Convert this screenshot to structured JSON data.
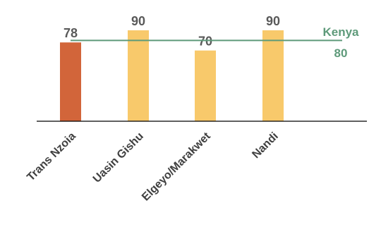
{
  "chart_data": {
    "type": "bar",
    "title": "",
    "xlabel": "",
    "ylabel": "",
    "categories": [
      "Trans Nzoia",
      "Uasin Gishu",
      "Elgeyo/Marakwet",
      "Nandi"
    ],
    "values": [
      78,
      90,
      70,
      90
    ],
    "value_labels": [
      "78",
      "90",
      "70",
      "90"
    ],
    "bar_colors": [
      "#d2653a",
      "#f8c96b",
      "#f8c96b",
      "#f8c96b"
    ],
    "ylim": [
      0,
      90
    ],
    "grid": false,
    "reference_line": {
      "name": "Kenya",
      "value": 80,
      "value_label": "80",
      "color": "#5e9a7a"
    }
  }
}
